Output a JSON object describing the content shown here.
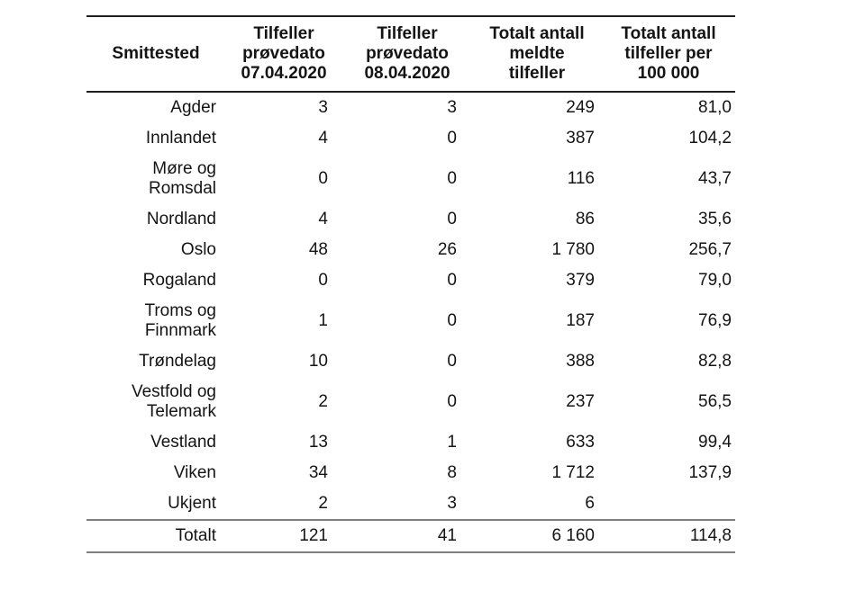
{
  "colors": {
    "background": "#ffffff",
    "text": "#141414",
    "rule_dark": "#1f1f1f",
    "rule_gray": "#7f7f7f"
  },
  "table": {
    "columns": [
      {
        "label": "Smittested"
      },
      {
        "label": "Tilfeller\nprøvedato\n07.04.2020"
      },
      {
        "label": "Tilfeller\nprøvedato\n08.04.2020"
      },
      {
        "label": "Totalt antall\nmeldte\ntilfeller"
      },
      {
        "label": "Totalt antall\ntilfeller per\n100 000"
      }
    ],
    "rows": [
      {
        "region": "Agder",
        "values": [
          "3",
          "3",
          "249",
          "81,0"
        ]
      },
      {
        "region": "Innlandet",
        "values": [
          "4",
          "0",
          "387",
          "104,2"
        ]
      },
      {
        "region": "Møre og\nRomsdal",
        "values": [
          "0",
          "0",
          "116",
          "43,7"
        ]
      },
      {
        "region": "Nordland",
        "values": [
          "4",
          "0",
          "86",
          "35,6"
        ]
      },
      {
        "region": "Oslo",
        "values": [
          "48",
          "26",
          "1 780",
          "256,7"
        ]
      },
      {
        "region": "Rogaland",
        "values": [
          "0",
          "0",
          "379",
          "79,0"
        ]
      },
      {
        "region": "Troms og\nFinnmark",
        "values": [
          "1",
          "0",
          "187",
          "76,9"
        ]
      },
      {
        "region": "Trøndelag",
        "values": [
          "10",
          "0",
          "388",
          "82,8"
        ]
      },
      {
        "region": "Vestfold og\nTelemark",
        "values": [
          "2",
          "0",
          "237",
          "56,5"
        ]
      },
      {
        "region": "Vestland",
        "values": [
          "13",
          "1",
          "633",
          "99,4"
        ]
      },
      {
        "region": "Viken",
        "values": [
          "34",
          "8",
          "1 712",
          "137,9"
        ]
      },
      {
        "region": "Ukjent",
        "values": [
          "2",
          "3",
          "6",
          ""
        ]
      }
    ],
    "total": {
      "region": "Totalt",
      "values": [
        "121",
        "41",
        "6 160",
        "114,8"
      ]
    }
  }
}
